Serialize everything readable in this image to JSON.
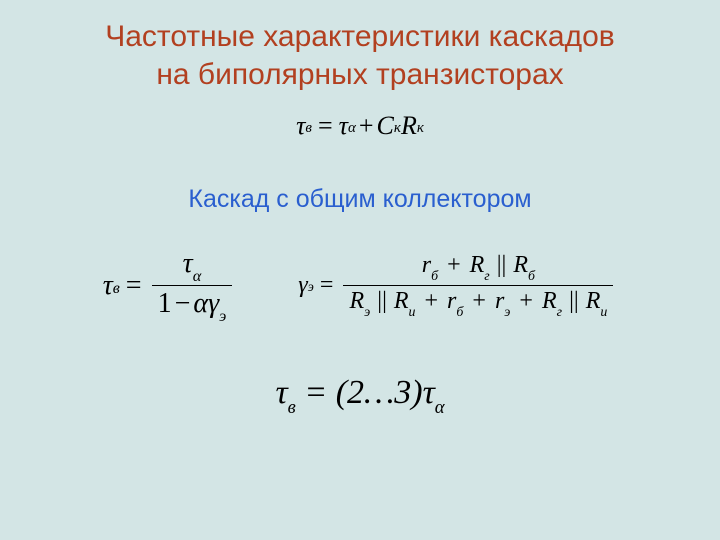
{
  "colors": {
    "background": "#d3e5e5",
    "title": "#b24020",
    "subtitle": "#2a5fcf",
    "formula": "#000000"
  },
  "title": {
    "line1": "Частотные характеристики каскадов",
    "line2": "на биполярных транзисторах"
  },
  "eq1": {
    "tau": "τ",
    "sub_v": "в",
    "eq": "=",
    "sub_alpha": "α",
    "plus": "+",
    "C": "C",
    "sub_k": "к",
    "R": "R"
  },
  "subtitle": "Каскад с общим коллектором",
  "eq2": {
    "tau": "τ",
    "sub_v": "в",
    "eq": "=",
    "sub_alpha": "α",
    "one": "1",
    "minus": "−",
    "alpha": "α",
    "gamma": "γ",
    "sub_e": "э"
  },
  "eq3": {
    "gamma": "γ",
    "sub_e": "э",
    "eq": "=",
    "r": "r",
    "R": "R",
    "sub_b": "б",
    "sub_g": "г",
    "sub_bb": "б",
    "sub_ee": "э",
    "sub_i": "и",
    "plus": "+",
    "par": "||"
  },
  "eq4": {
    "tau": "τ",
    "sub_v": "в",
    "eq": " = ",
    "range": "(2…3)",
    "sub_alpha": "α"
  }
}
